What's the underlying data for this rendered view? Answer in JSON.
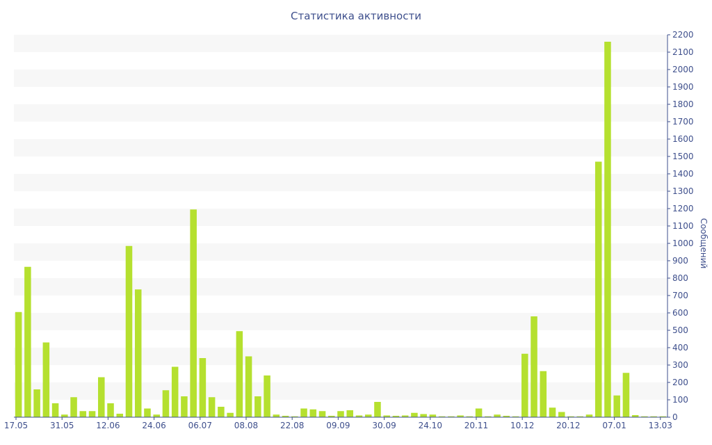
{
  "chart_data": {
    "type": "bar",
    "title": "Статистика активности",
    "xlabel": "",
    "ylabel": "Сообщений",
    "ylim": [
      0,
      2200
    ],
    "y_ticks": [
      0,
      100,
      200,
      300,
      400,
      500,
      600,
      700,
      800,
      900,
      1000,
      1100,
      1200,
      1300,
      1400,
      1500,
      1600,
      1700,
      1800,
      1900,
      2000,
      2100,
      2200
    ],
    "y_axis_side": "right",
    "grid": "alternating horizontal bands",
    "x_tick_labels": [
      "17.05",
      "31.05",
      "12.06",
      "24.06",
      "06.07",
      "08.08",
      "22.08",
      "09.09",
      "30.09",
      "24.10",
      "20.11",
      "10.12",
      "20.12",
      "07.01",
      "13.03"
    ],
    "x_tick_positions": [
      0,
      5,
      10,
      15,
      20,
      25,
      30,
      35,
      40,
      45,
      50,
      55,
      60,
      65,
      70
    ],
    "values": [
      605,
      865,
      160,
      430,
      80,
      15,
      115,
      35,
      35,
      230,
      80,
      20,
      985,
      735,
      50,
      15,
      155,
      290,
      120,
      1195,
      340,
      115,
      60,
      25,
      495,
      350,
      120,
      240,
      15,
      8,
      5,
      50,
      45,
      35,
      8,
      35,
      40,
      10,
      15,
      88,
      10,
      8,
      10,
      25,
      18,
      15,
      5,
      5,
      10,
      5,
      50,
      5,
      15,
      8,
      5,
      365,
      580,
      265,
      55,
      30,
      5,
      5,
      15,
      1470,
      2160,
      125,
      255,
      12,
      5,
      5,
      5
    ],
    "colors": {
      "bar": "#b5e02f",
      "band": "#f7f7f7",
      "axis": "#3e4f8c",
      "text": "#3e4f8c"
    }
  }
}
